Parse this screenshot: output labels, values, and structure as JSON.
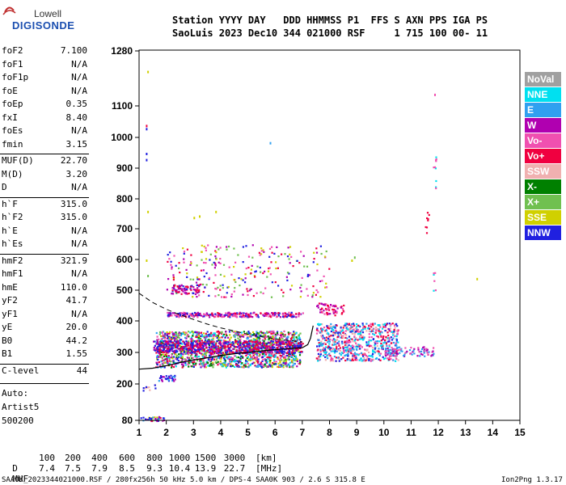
{
  "logo": {
    "top": "Lowell",
    "bottom": "DIGISONDE"
  },
  "header": {
    "line1": "Station YYYY DAY   DDD HHMMSS P1  FFS S AXN PPS IGA PS",
    "line2": "SaoLuis 2023 Dec10 344 021000 RSF     1 715 100 00- 11"
  },
  "params": [
    {
      "name": "foF2",
      "value": "7.100"
    },
    {
      "name": "foF1",
      "value": "N/A"
    },
    {
      "name": "foF1p",
      "value": "N/A"
    },
    {
      "name": "foE",
      "value": "N/A"
    },
    {
      "name": "foEp",
      "value": "0.35"
    },
    {
      "name": "fxI",
      "value": "8.40"
    },
    {
      "name": "foEs",
      "value": "N/A"
    },
    {
      "name": "fmin",
      "value": "3.15"
    },
    {
      "name": "MUF(D)",
      "value": "22.70"
    },
    {
      "name": "M(D)",
      "value": "3.20"
    },
    {
      "name": "D",
      "value": "N/A"
    },
    {
      "name": "h`F",
      "value": "315.0"
    },
    {
      "name": "h`F2",
      "value": "315.0"
    },
    {
      "name": "h`E",
      "value": "N/A"
    },
    {
      "name": "h`Es",
      "value": "N/A"
    },
    {
      "name": "hmF2",
      "value": "321.9"
    },
    {
      "name": "hmF1",
      "value": "N/A"
    },
    {
      "name": "hmE",
      "value": "110.0"
    },
    {
      "name": "yF2",
      "value": "41.7"
    },
    {
      "name": "yF1",
      "value": "N/A"
    },
    {
      "name": "yE",
      "value": "20.0"
    },
    {
      "name": "B0",
      "value": "44.2"
    },
    {
      "name": "B1",
      "value": "1.55"
    },
    {
      "name": "C-level",
      "value": "44"
    }
  ],
  "auto": {
    "line1": "Auto:",
    "line2": "Artist5",
    "line3": "500200"
  },
  "legend": [
    {
      "label": "NoVal",
      "color": "#a0a0a0"
    },
    {
      "label": "NNE",
      "color": "#00e0f0"
    },
    {
      "label": "E",
      "color": "#30a0f0"
    },
    {
      "label": "W",
      "color": "#b000b0"
    },
    {
      "label": "Vo-",
      "color": "#f050b0"
    },
    {
      "label": "Vo+",
      "color": "#f00040"
    },
    {
      "label": "SSW",
      "color": "#f0b0b0"
    },
    {
      "label": "X-",
      "color": "#008000"
    },
    {
      "label": "X+",
      "color": "#70c050"
    },
    {
      "label": "SSE",
      "color": "#d0d000"
    },
    {
      "label": "NNW",
      "color": "#2020e0"
    }
  ],
  "muf_table": {
    "d_label": "D",
    "d_values": [
      "100",
      "200",
      "400",
      "600",
      "800",
      "1000",
      "1500",
      "3000"
    ],
    "d_unit": "[km]",
    "m_label": "MUF",
    "m_values": [
      "7.4",
      "7.5",
      "7.9",
      "8.5",
      "9.3",
      "10.4",
      "13.9",
      "22.7"
    ],
    "m_unit": "[MHz]"
  },
  "footer": {
    "left": "SAA0K_2023344021000.RSF / 280fx256h 50 kHz 5.0 km / DPS-4 SAA0K 903 / 2.6 S 315.8 E",
    "right": "Ion2Png 1.3.17"
  },
  "chart_data": {
    "type": "scatter",
    "xlim": [
      1,
      15
    ],
    "ylim": [
      80,
      1280
    ],
    "x_ticks": [
      "1",
      "2",
      "3",
      "4",
      "5",
      "6",
      "7",
      "8",
      "9",
      "10",
      "11",
      "12",
      "13",
      "14",
      "15"
    ],
    "y_ticks": [
      "80",
      "200",
      "300",
      "400",
      "500",
      "600",
      "700",
      "800",
      "900",
      "1000",
      "1100",
      "1280"
    ],
    "y_tick_values": [
      80,
      200,
      300,
      400,
      500,
      600,
      700,
      800,
      900,
      1000,
      1100,
      1280
    ],
    "scale": "reciprocal-height",
    "grid": false,
    "legend_position": "right",
    "trace_curve": [
      [
        1.0,
        247
      ],
      [
        1.5,
        250
      ],
      [
        2.0,
        258
      ],
      [
        2.5,
        268
      ],
      [
        3.0,
        276
      ],
      [
        3.5,
        283
      ],
      [
        4.0,
        290
      ],
      [
        4.5,
        296
      ],
      [
        5.0,
        300
      ],
      [
        5.5,
        305
      ],
      [
        6.0,
        309
      ],
      [
        6.5,
        312
      ],
      [
        7.0,
        315
      ],
      [
        7.2,
        325
      ],
      [
        7.3,
        345
      ],
      [
        7.4,
        385
      ]
    ],
    "dashed_curve": [
      [
        1.0,
        490
      ],
      [
        1.5,
        460
      ],
      [
        2.0,
        438
      ],
      [
        2.5,
        420
      ],
      [
        3.0,
        405
      ],
      [
        3.5,
        390
      ],
      [
        4.0,
        378
      ],
      [
        4.5,
        368
      ],
      [
        5.0,
        358
      ],
      [
        5.5,
        350
      ],
      [
        6.0,
        343
      ],
      [
        6.5,
        338
      ],
      [
        7.0,
        333
      ]
    ],
    "clusters": [
      {
        "x": [
          1.6,
          6.9
        ],
        "y": [
          255,
          370
        ],
        "count": 1600,
        "colors": [
          "Vo+",
          "Vo-",
          "NNW",
          "W",
          "E",
          "SSE",
          "NNE",
          "X+",
          "X-"
        ]
      },
      {
        "x": [
          1.5,
          7.0
        ],
        "y": [
          300,
          340
        ],
        "count": 600,
        "colors": [
          "NNW",
          "W",
          "Vo+"
        ]
      },
      {
        "x": [
          7.5,
          10.5
        ],
        "y": [
          275,
          395
        ],
        "count": 700,
        "colors": [
          "E",
          "NNE",
          "Vo-",
          "NNW",
          "Vo+",
          "SSW"
        ]
      },
      {
        "x": [
          10.0,
          11.8
        ],
        "y": [
          290,
          320
        ],
        "count": 90,
        "colors": [
          "Vo-",
          "W",
          "E"
        ]
      },
      {
        "x": [
          2.0,
          7.0
        ],
        "y": [
          415,
          430
        ],
        "count": 280,
        "colors": [
          "NNW",
          "Vo+",
          "W",
          "Vo-"
        ]
      },
      {
        "x": [
          7.5,
          8.5
        ],
        "y": [
          420,
          460
        ],
        "count": 60,
        "colors": [
          "Vo+",
          "W",
          "Vo-"
        ]
      },
      {
        "x": [
          2.0,
          8.0
        ],
        "y": [
          480,
          650
        ],
        "count": 260,
        "colors": [
          "NNW",
          "Vo+",
          "W",
          "SSE",
          "Vo-",
          "X+"
        ]
      },
      {
        "x": [
          2.2,
          3.2
        ],
        "y": [
          490,
          520
        ],
        "count": 70,
        "colors": [
          "NNW",
          "Vo+",
          "W"
        ]
      },
      {
        "x": [
          1.7,
          2.3
        ],
        "y": [
          210,
          230
        ],
        "count": 35,
        "colors": [
          "NNW",
          "W",
          "E"
        ]
      },
      {
        "x": [
          1.0,
          2.0
        ],
        "y": [
          80,
          95
        ],
        "count": 35,
        "colors": [
          "NNW",
          "E",
          "W",
          "Vo+",
          "SSE"
        ]
      },
      {
        "x": [
          1.1,
          1.6
        ],
        "y": [
          180,
          200
        ],
        "count": 10,
        "colors": [
          "SSW",
          "NNW"
        ]
      },
      {
        "x": [
          11.5,
          11.65
        ],
        "y": [
          680,
          760
        ],
        "count": 8,
        "colors": [
          "Vo+"
        ]
      },
      {
        "x": [
          11.8,
          11.9
        ],
        "y": [
          820,
          960
        ],
        "count": 10,
        "colors": [
          "Vo-",
          "NNE"
        ]
      },
      {
        "x": [
          11.8,
          11.9
        ],
        "y": [
          480,
          580
        ],
        "count": 6,
        "colors": [
          "NNE",
          "Vo-"
        ]
      }
    ],
    "points": [
      {
        "x": 1.25,
        "y": 1040,
        "c": "Vo+"
      },
      {
        "x": 1.25,
        "y": 1030,
        "c": "NNW"
      },
      {
        "x": 1.25,
        "y": 950,
        "c": "NNW"
      },
      {
        "x": 1.25,
        "y": 930,
        "c": "NNW"
      },
      {
        "x": 1.3,
        "y": 1215,
        "c": "SSE"
      },
      {
        "x": 1.3,
        "y": 760,
        "c": "SSE"
      },
      {
        "x": 1.25,
        "y": 600,
        "c": "SSE"
      },
      {
        "x": 1.3,
        "y": 550,
        "c": "X+"
      },
      {
        "x": 11.85,
        "y": 1140,
        "c": "Vo-"
      },
      {
        "x": 5.8,
        "y": 985,
        "c": "E"
      },
      {
        "x": 3.0,
        "y": 740,
        "c": "SSE"
      },
      {
        "x": 3.2,
        "y": 745,
        "c": "SSE"
      },
      {
        "x": 3.8,
        "y": 760,
        "c": "SSE"
      },
      {
        "x": 13.4,
        "y": 540,
        "c": "SSE"
      },
      {
        "x": 8.8,
        "y": 600,
        "c": "SSE"
      },
      {
        "x": 8.9,
        "y": 610,
        "c": "X+"
      }
    ]
  }
}
